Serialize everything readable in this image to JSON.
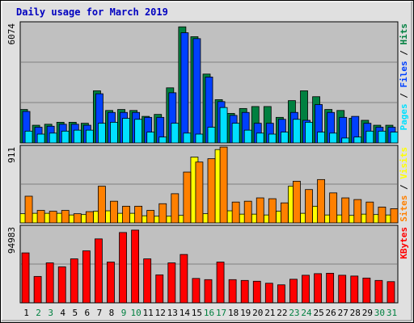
{
  "chart_data": {
    "type": "bar",
    "title": "Daily usage for March 2019",
    "categories": [
      "1",
      "2",
      "3",
      "4",
      "5",
      "6",
      "7",
      "8",
      "9",
      "10",
      "11",
      "12",
      "13",
      "14",
      "15",
      "16",
      "17",
      "18",
      "19",
      "20",
      "21",
      "22",
      "23",
      "24",
      "25",
      "26",
      "27",
      "28",
      "29",
      "30",
      "31"
    ],
    "weekend_days": [
      "2",
      "3",
      "9",
      "10",
      "16",
      "17",
      "23",
      "24",
      "30",
      "31"
    ],
    "colors": {
      "hits": "#008040",
      "files": "#0040ff",
      "pages": "#00e0ff",
      "visits": "#ffff00",
      "sites": "#ff8000",
      "kbytes": "#ff0000",
      "title": "#0000c0",
      "weekday_label": "#000000",
      "weekend_label": "#008040",
      "plot_bg": "#c0c0c0",
      "frame_bg": "#e0e0e0"
    },
    "panels": [
      {
        "ymax_label": "6074",
        "ymax": 6074,
        "axis_label_parts": [
          {
            "text": "Pages",
            "color": "#00e0ff"
          },
          {
            "text": " / ",
            "color": "#000000"
          },
          {
            "text": "Files",
            "color": "#0040ff"
          },
          {
            "text": " / ",
            "color": "#000000"
          },
          {
            "text": "Hits",
            "color": "#008040"
          }
        ],
        "series": [
          {
            "name": "Hits",
            "color": "#008040",
            "values": [
              1700,
              900,
              950,
              1050,
              1050,
              1000,
              2650,
              1650,
              1700,
              1650,
              1350,
              1450,
              2800,
              5900,
              5400,
              3500,
              2200,
              1500,
              1750,
              1850,
              1850,
              1300,
              2150,
              2650,
              2350,
              1700,
              1650,
              1250,
              1150,
              900,
              900
            ]
          },
          {
            "name": "Files",
            "color": "#0040ff",
            "values": [
              1600,
              800,
              850,
              950,
              950,
              900,
              2500,
              1550,
              1550,
              1550,
              1300,
              1300,
              2550,
              5600,
              5300,
              3350,
              2100,
              1400,
              1550,
              1000,
              1000,
              1200,
              1550,
              1150,
              1950,
              1550,
              1300,
              1350,
              1000,
              800,
              800
            ]
          },
          {
            "name": "Pages",
            "color": "#00e0ff",
            "values": [
              600,
              450,
              500,
              600,
              650,
              650,
              1000,
              1050,
              1250,
              1200,
              550,
              300,
              1000,
              500,
              450,
              800,
              1800,
              1000,
              650,
              500,
              450,
              550,
              1200,
              1050,
              550,
              500,
              250,
              300,
              600,
              600,
              550
            ]
          }
        ]
      },
      {
        "ymax_label": "911",
        "ymax": 911,
        "axis_label_parts": [
          {
            "text": "Sites",
            "color": "#ff8000"
          },
          {
            "text": " / ",
            "color": "#000000"
          },
          {
            "text": "Visits",
            "color": "#ffff00"
          }
        ],
        "series": [
          {
            "name": "Visits",
            "color": "#ffff00",
            "values": [
              110,
              115,
              115,
              115,
              95,
              100,
              140,
              145,
              115,
              115,
              85,
              80,
              80,
              90,
              790,
              110,
              880,
              145,
              105,
              105,
              95,
              140,
              440,
              115,
              200,
              95,
              95,
              90,
              105,
              100,
              95
            ]
          },
          {
            "name": "Sites",
            "color": "#ff8000",
            "values": [
              320,
              150,
              140,
              150,
              110,
              135,
              440,
              260,
              200,
              200,
              150,
              230,
              350,
              610,
              730,
              770,
              910,
              250,
              260,
              300,
              290,
              240,
              500,
              400,
              520,
              360,
              300,
              280,
              250,
              190,
              170
            ]
          }
        ]
      },
      {
        "ymax_label": "94983",
        "ymax": 94983,
        "axis_label_parts": [
          {
            "text": "KBytes",
            "color": "#ff0000"
          }
        ],
        "series": [
          {
            "name": "KBytes",
            "color": "#ff0000",
            "values": [
              62500,
              33000,
              50000,
              45000,
              55000,
              65000,
              80000,
              51000,
              88000,
              91000,
              55000,
              35000,
              50000,
              60500,
              30500,
              29000,
              51000,
              29000,
              28000,
              27000,
              24500,
              22500,
              29500,
              34500,
              36500,
              37000,
              34500,
              33500,
              31000,
              28000,
              26500
            ]
          }
        ]
      }
    ]
  }
}
